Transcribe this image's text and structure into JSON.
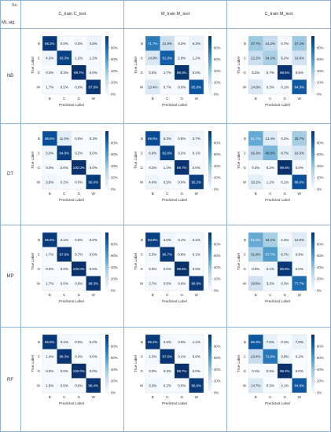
{
  "header": {
    "sc_label": "Sc.",
    "ml_label": "ML alg.",
    "columns": [
      "C_train C_test",
      "M_train M_test",
      "C_train M_test"
    ]
  },
  "rows": [
    "NB",
    "DT",
    "MP",
    "RF"
  ],
  "axis": {
    "xlabel": "Predicted Label",
    "ylabel": "True Label",
    "classes": [
      "B",
      "C",
      "G",
      "W"
    ],
    "colorbar_ticks": [
      "80%",
      "60%",
      "40%",
      "20%",
      "0%"
    ]
  },
  "colors": {
    "grid_line": "#8eb0d8",
    "low": "#f7fbff",
    "high": "#08306b"
  },
  "chart_data": [
    {
      "type": "heatmap",
      "scenario": "C_train C_test",
      "algorithm": "NB",
      "values": [
        [
          96.2,
          0.0,
          0.0,
          4.5
        ],
        [
          4.3,
          93.3,
          1.2,
          1.2
        ],
        [
          0.0,
          0.3,
          99.7,
          0.0
        ],
        [
          1.7,
          0.5,
          0.0,
          97.8
        ]
      ],
      "labels": [
        [
          "96.2%",
          "0.0%",
          "0.0%",
          "4.5%"
        ],
        [
          "4.3%",
          "93.3%",
          "1.2%",
          "1.2%"
        ],
        [
          "0.0%",
          "0.3%",
          "99.7%",
          "0.0%"
        ],
        [
          "1.7%",
          "0.5%",
          "0.0%",
          "97.8%"
        ]
      ]
    },
    {
      "type": "heatmap",
      "scenario": "M_train M_test",
      "algorithm": "NB",
      "values": [
        [
          71.7,
          21.8,
          0.2,
          6.3
        ],
        [
          14.9,
          81.9,
          2.0,
          1.2
        ],
        [
          0.0,
          1.7,
          98.3,
          0.0
        ],
        [
          13.4,
          0.7,
          0.0,
          85.8
        ]
      ],
      "labels": [
        [
          "71.7%",
          "21.8%",
          "0.2%",
          "6.3%"
        ],
        [
          "14.9%",
          "81.9%",
          "2.0%",
          "1.2%"
        ],
        [
          "0.0%",
          "1.7%",
          "98.3%",
          "0.0%"
        ],
        [
          "13.4%",
          "0.7%",
          "0.0%",
          "85.8%"
        ]
      ]
    },
    {
      "type": "heatmap",
      "scenario": "C_train M_test",
      "algorithm": "NB",
      "values": [
        [
          37.7,
          24.2,
          0.7,
          37.4
        ],
        [
          22.2,
          34.1,
          5.2,
          18.6
        ],
        [
          0.2,
          0.7,
          98.5,
          0.6
        ],
        [
          14.8,
          0.3,
          0.1,
          84.9
        ]
      ],
      "labels": [
        [
          "37.7%",
          "24.2%",
          "0.7%",
          "37.4%"
        ],
        [
          "22.2%",
          "34.1%",
          "5.2%",
          "18.6%"
        ],
        [
          "0.2%",
          "0.7%",
          "98.5%",
          "0.6%"
        ],
        [
          "14.8%",
          "0.3%",
          "0.1%",
          "84.9%"
        ]
      ]
    },
    {
      "type": "heatmap",
      "scenario": "C_train C_test",
      "algorithm": "DT",
      "values": [
        [
          88.6,
          11.0,
          0.0,
          0.3
        ],
        [
          5.0,
          94.8,
          0.2,
          0.0
        ],
        [
          0.0,
          0.0,
          100.0,
          0.0
        ],
        [
          3.8,
          0.2,
          0.0,
          96.0
        ]
      ],
      "labels": [
        [
          "88.6%",
          "11.0%",
          "0.0%",
          "0.3%"
        ],
        [
          "5.0%",
          "94.8%",
          "0.2%",
          "0.0%"
        ],
        [
          "0.0%",
          "0.0%",
          "100.0%",
          "0.0%"
        ],
        [
          "3.8%",
          "0.2%",
          "0.0%",
          "96.0%"
        ]
      ]
    },
    {
      "type": "heatmap",
      "scenario": "M_train M_test",
      "algorithm": "DT",
      "values": [
        [
          89.6,
          6.3,
          0.5,
          3.7
        ],
        [
          6.9,
          92.8,
          0.2,
          0.1
        ],
        [
          0.2,
          1.1,
          98.7,
          0.0
        ],
        [
          4.4,
          0.5,
          0.0,
          95.2
        ]
      ],
      "labels": [
        [
          "89.6%",
          "6.3%",
          "0.5%",
          "3.7%"
        ],
        [
          "6.9%",
          "92.8%",
          "0.2%",
          "0.1%"
        ],
        [
          "0.2%",
          "1.1%",
          "98.7%",
          "0.0%"
        ],
        [
          "4.4%",
          "0.5%",
          "0.0%",
          "95.2%"
        ]
      ]
    },
    {
      "type": "heatmap",
      "scenario": "C_train M_test",
      "algorithm": "DT",
      "values": [
        [
          51.7,
          12.4,
          0.2,
          35.7
        ],
        [
          26.3,
          46.5,
          8.7,
          16.5
        ],
        [
          0.3,
          0.2,
          99.5,
          0.0
        ],
        [
          10.1,
          1.2,
          0.1,
          88.6
        ]
      ],
      "labels": [
        [
          "51.7%",
          "12.4%",
          "0.2%",
          "35.7%"
        ],
        [
          "26.3%",
          "46.5%",
          "8.7%",
          "16.5%"
        ],
        [
          "0.3%",
          "0.2%",
          "99.5%",
          "0.0%"
        ],
        [
          "10.1%",
          "1.2%",
          "0.1%",
          "88.6%"
        ]
      ]
    },
    {
      "type": "heatmap",
      "scenario": "C_train C_test",
      "algorithm": "MP",
      "values": [
        [
          96.6,
          3.1,
          0.0,
          0.0
        ],
        [
          1.7,
          97.6,
          0.7,
          0.0
        ],
        [
          0.0,
          0.0,
          100.0,
          0.0
        ],
        [
          1.7,
          0.0,
          0.0,
          98.3
        ]
      ],
      "labels": [
        [
          "96.6%",
          "3.1%",
          "0.0%",
          "0.0%"
        ],
        [
          "1.7%",
          "97.6%",
          "0.7%",
          "0.0%"
        ],
        [
          "0.0%",
          "0.0%",
          "100.0%",
          "0.0%"
        ],
        [
          "1.7%",
          "0.0%",
          "0.0%",
          "98.3%"
        ]
      ]
    },
    {
      "type": "heatmap",
      "scenario": "M_train M_test",
      "algorithm": "MP",
      "values": [
        [
          93.8,
          4.0,
          0.1,
          2.1
        ],
        [
          2.3,
          96.7,
          0.8,
          0.1
        ],
        [
          0.0,
          0.0,
          99.8,
          0.0
        ],
        [
          2.7,
          0.5,
          0.0,
          96.8
        ]
      ],
      "labels": [
        [
          "93.8%",
          "4.0%",
          "0.1%",
          "2.1%"
        ],
        [
          "2.3%",
          "96.7%",
          "0.8%",
          "0.1%"
        ],
        [
          "0.0%",
          "0.0%",
          "99.8%",
          "0.0%"
        ],
        [
          "2.7%",
          "0.5%",
          "0.0%",
          "96.8%"
        ]
      ]
    },
    {
      "type": "heatmap",
      "scenario": "C_train M_test",
      "algorithm": "MP",
      "values": [
        [
          51.6,
          34.1,
          2.2,
          12.0
        ],
        [
          31.8,
          57.7,
          9.7,
          0.8
        ],
        [
          0.0,
          3.1,
          96.9,
          0.0
        ],
        [
          19.8,
          3.2,
          0.3,
          77.7
        ]
      ],
      "labels": [
        [
          "51.6%",
          "34.1%",
          "2.2%",
          "12.0%"
        ],
        [
          "31.8%",
          "57.7%",
          "9.7%",
          "0.8%"
        ],
        [
          "0.0%",
          "3.1%",
          "96.9%",
          "0.0%"
        ],
        [
          "19.8%",
          "3.2%",
          "0.3%",
          "77.7%"
        ]
      ]
    },
    {
      "type": "heatmap",
      "scenario": "C_train C_test",
      "algorithm": "RF",
      "values": [
        [
          96.9,
          3.1,
          0.0,
          0.0
        ],
        [
          1.4,
          98.3,
          0.3,
          0.0
        ],
        [
          0.0,
          0.0,
          100.0,
          0.0
        ],
        [
          1.6,
          0.0,
          0.0,
          98.4
        ]
      ],
      "labels": [
        [
          "96.9%",
          "3.1%",
          "0.0%",
          "0.0%"
        ],
        [
          "1.4%",
          "98.3%",
          "0.3%",
          "0.0%"
        ],
        [
          "0.0%",
          "0.0%",
          "100.0%",
          "0.0%"
        ],
        [
          "1.6%",
          "0.0%",
          "0.0%",
          "98.4%"
        ]
      ]
    },
    {
      "type": "heatmap",
      "scenario": "M_train M_test",
      "algorithm": "RF",
      "values": [
        [
          96.4,
          2.6,
          0.0,
          1.1
        ],
        [
          2.3,
          97.6,
          0.1,
          0.0
        ],
        [
          0.0,
          0.3,
          99.7,
          0.0
        ],
        [
          3.3,
          0.2,
          0.0,
          96.6
        ]
      ],
      "labels": [
        [
          "96.4%",
          "2.6%",
          "0.0%",
          "1.1%"
        ],
        [
          "2.3%",
          "97.6%",
          "0.1%",
          "0.0%"
        ],
        [
          "0.0%",
          "0.3%",
          "99.7%",
          "0.0%"
        ],
        [
          "3.3%",
          "0.2%",
          "0.0%",
          "96.6%"
        ]
      ]
    },
    {
      "type": "heatmap",
      "scenario": "C_train M_test",
      "algorithm": "RF",
      "values": [
        [
          85.3,
          7.6,
          0.1,
          7.0
        ],
        [
          23.4,
          72.8,
          3.8,
          0.2
        ],
        [
          0.1,
          0.5,
          99.4,
          0.0
        ],
        [
          14.7,
          0.3,
          0.1,
          84.9
        ]
      ],
      "labels": [
        [
          "85.3%",
          "7.6%",
          "0.1%",
          "7.0%"
        ],
        [
          "23.4%",
          "72.8%",
          "3.8%",
          "0.2%"
        ],
        [
          "0.1%",
          "0.5%",
          "99.4%",
          "0.0%"
        ],
        [
          "14.7%",
          "0.3%",
          "0.1%",
          "84.9%"
        ]
      ]
    }
  ]
}
